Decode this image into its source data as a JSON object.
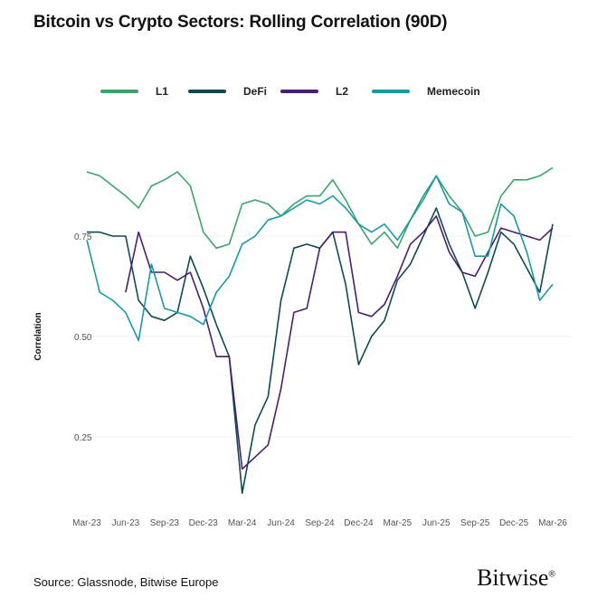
{
  "title": "Bitcoin vs Crypto Sectors: Rolling Correlation (90D)",
  "source": "Source: Glassnode, Bitwise Europe",
  "logo": "Bitwise",
  "chart_data": {
    "type": "line",
    "title": "Bitcoin vs Crypto Sectors: Rolling Correlation (90D)",
    "ylabel": "Correlation",
    "xlabel": "",
    "ylim": [
      0.08,
      0.95
    ],
    "yticks": [
      "0.25",
      "0.50",
      "0.75"
    ],
    "ytick_values": [
      0.25,
      0.5,
      0.75
    ],
    "xticks": [
      "Mar-23",
      "Jun-23",
      "Sep-23",
      "Dec-23",
      "Mar-24",
      "Jun-24",
      "Sep-24",
      "Dec-24",
      "Mar-25",
      "Jun-25",
      "Sep-25",
      "Dec-25",
      "Mar-26"
    ],
    "grid": "horizontal",
    "legend": "top",
    "x": [
      "2023-03",
      "2023-04",
      "2023-05",
      "2023-06",
      "2023-07",
      "2023-08",
      "2023-09",
      "2023-10",
      "2023-11",
      "2023-12",
      "2024-01",
      "2024-02",
      "2024-03",
      "2024-04",
      "2024-05",
      "2024-06",
      "2024-07",
      "2024-08",
      "2024-09",
      "2024-10",
      "2024-11",
      "2024-12",
      "2025-01",
      "2025-02",
      "2025-03",
      "2025-04",
      "2025-05",
      "2025-06",
      "2025-07",
      "2025-08",
      "2025-09",
      "2025-10",
      "2025-11",
      "2025-12",
      "2026-01",
      "2026-02",
      "2026-03"
    ],
    "series": [
      {
        "name": "L1",
        "color": "#3da36a",
        "values": [
          0.91,
          0.9,
          0.875,
          0.85,
          0.82,
          0.875,
          0.89,
          0.91,
          0.875,
          0.76,
          0.72,
          0.73,
          0.83,
          0.84,
          0.83,
          0.8,
          0.83,
          0.85,
          0.85,
          0.89,
          0.84,
          0.78,
          0.73,
          0.76,
          0.72,
          0.79,
          0.84,
          0.9,
          0.85,
          0.81,
          0.75,
          0.76,
          0.85,
          0.89,
          0.89,
          0.9,
          0.92
        ]
      },
      {
        "name": "DeFi",
        "color": "#0d4a52",
        "values": [
          0.76,
          0.76,
          0.75,
          0.75,
          0.59,
          0.55,
          0.54,
          0.56,
          0.7,
          0.62,
          0.53,
          0.45,
          0.11,
          0.28,
          0.35,
          0.59,
          0.72,
          0.73,
          0.72,
          0.76,
          0.63,
          0.43,
          0.5,
          0.54,
          0.64,
          0.68,
          0.75,
          0.82,
          0.73,
          0.66,
          0.57,
          0.66,
          0.76,
          0.73,
          0.67,
          0.61,
          0.78
        ]
      },
      {
        "name": "L2",
        "color": "#4a1f6e",
        "values": [
          null,
          null,
          null,
          0.61,
          0.76,
          0.66,
          0.66,
          0.64,
          0.66,
          0.57,
          0.45,
          0.45,
          0.17,
          0.2,
          0.23,
          0.37,
          0.56,
          0.57,
          0.72,
          0.76,
          0.76,
          0.56,
          0.55,
          0.58,
          0.65,
          0.73,
          0.76,
          0.8,
          0.71,
          0.66,
          0.65,
          0.71,
          0.77,
          0.76,
          0.75,
          0.74,
          0.77
        ]
      },
      {
        "name": "Memecoin",
        "color": "#1b98a8",
        "values": [
          0.74,
          0.61,
          0.59,
          0.56,
          0.49,
          0.68,
          0.57,
          0.56,
          0.55,
          0.53,
          0.61,
          0.65,
          0.73,
          0.75,
          0.79,
          0.8,
          0.82,
          0.84,
          0.83,
          0.85,
          0.82,
          0.78,
          0.76,
          0.78,
          0.74,
          0.79,
          0.85,
          0.9,
          0.83,
          0.81,
          0.7,
          0.7,
          0.83,
          0.8,
          0.71,
          0.59,
          0.63
        ]
      }
    ]
  }
}
